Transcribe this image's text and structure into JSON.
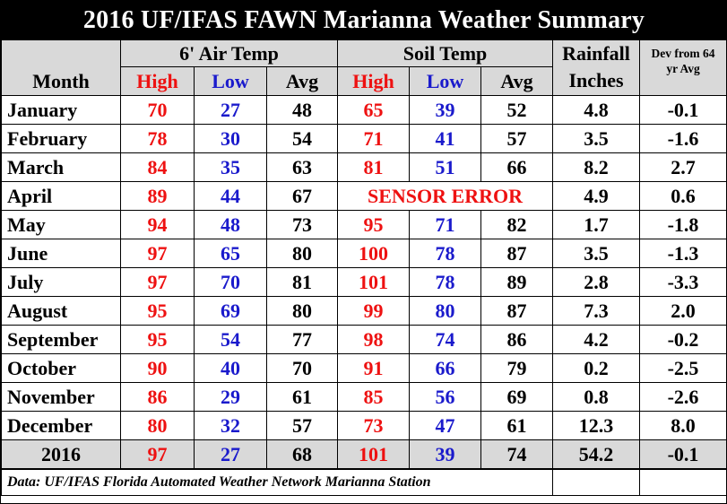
{
  "title": "2016 UF/IFAS FAWN Marianna Weather Summary",
  "headers": {
    "month": "Month",
    "air_temp": "6' Air Temp",
    "soil_temp": "Soil Temp",
    "rainfall": "Rainfall",
    "inches": "Inches",
    "dev_line1": "Dev from 64",
    "dev_line2": "yr Avg",
    "high": "High",
    "low": "Low",
    "avg": "Avg"
  },
  "rows": [
    {
      "month": "January",
      "air_high": "70",
      "air_low": "27",
      "air_avg": "48",
      "soil_high": "65",
      "soil_low": "39",
      "soil_avg": "52",
      "rain": "4.8",
      "dev": "-0.1"
    },
    {
      "month": "February",
      "air_high": "78",
      "air_low": "30",
      "air_avg": "54",
      "soil_high": "71",
      "soil_low": "41",
      "soil_avg": "57",
      "rain": "3.5",
      "dev": "-1.6"
    },
    {
      "month": "March",
      "air_high": "84",
      "air_low": "35",
      "air_avg": "63",
      "soil_high": "81",
      "soil_low": "51",
      "soil_avg": "66",
      "rain": "8.2",
      "dev": "2.7"
    },
    {
      "month": "April",
      "air_high": "89",
      "air_low": "44",
      "air_avg": "67",
      "soil_error": "SENSOR ERROR",
      "rain": "4.9",
      "dev": "0.6"
    },
    {
      "month": "May",
      "air_high": "94",
      "air_low": "48",
      "air_avg": "73",
      "soil_high": "95",
      "soil_low": "71",
      "soil_avg": "82",
      "rain": "1.7",
      "dev": "-1.8"
    },
    {
      "month": "June",
      "air_high": "97",
      "air_low": "65",
      "air_avg": "80",
      "soil_high": "100",
      "soil_low": "78",
      "soil_avg": "87",
      "rain": "3.5",
      "dev": "-1.3"
    },
    {
      "month": "July",
      "air_high": "97",
      "air_low": "70",
      "air_avg": "81",
      "soil_high": "101",
      "soil_low": "78",
      "soil_avg": "89",
      "rain": "2.8",
      "dev": "-3.3"
    },
    {
      "month": "August",
      "air_high": "95",
      "air_low": "69",
      "air_avg": "80",
      "soil_high": "99",
      "soil_low": "80",
      "soil_avg": "87",
      "rain": "7.3",
      "dev": "2.0"
    },
    {
      "month": "September",
      "air_high": "95",
      "air_low": "54",
      "air_avg": "77",
      "soil_high": "98",
      "soil_low": "74",
      "soil_avg": "86",
      "rain": "4.2",
      "dev": "-0.2"
    },
    {
      "month": "October",
      "air_high": "90",
      "air_low": "40",
      "air_avg": "70",
      "soil_high": "91",
      "soil_low": "66",
      "soil_avg": "79",
      "rain": "0.2",
      "dev": "-2.5"
    },
    {
      "month": "November",
      "air_high": "86",
      "air_low": "29",
      "air_avg": "61",
      "soil_high": "85",
      "soil_low": "56",
      "soil_avg": "69",
      "rain": "0.8",
      "dev": "-2.6"
    },
    {
      "month": "December",
      "air_high": "80",
      "air_low": "32",
      "air_avg": "57",
      "soil_high": "73",
      "soil_low": "47",
      "soil_avg": "61",
      "rain": "12.3",
      "dev": "8.0"
    }
  ],
  "total": {
    "month": "2016",
    "air_high": "97",
    "air_low": "27",
    "air_avg": "68",
    "soil_high": "101",
    "soil_low": "39",
    "soil_avg": "74",
    "rain": "54.2",
    "dev": "-0.1"
  },
  "footer": "Data:  UF/IFAS Florida Automated Weather Network Marianna Station",
  "colors": {
    "high": "#ee1111",
    "low": "#1a1acc",
    "header_bg": "#d9d9d9",
    "title_bg": "#000000"
  }
}
